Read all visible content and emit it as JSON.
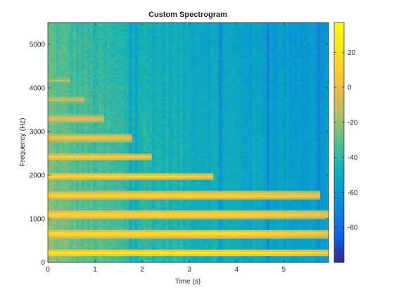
{
  "chart_data": {
    "type": "heatmap",
    "title": "Custom Spectrogram",
    "xlabel": "Time (s)",
    "ylabel": "Frequency (Hz)",
    "xlim": [
      0,
      5.95
    ],
    "ylim": [
      0,
      5500
    ],
    "x_ticks": [
      0,
      1,
      2,
      3,
      4,
      5
    ],
    "x_tick_labels": [
      "0",
      "1",
      "2",
      "3",
      "4",
      "5"
    ],
    "y_ticks": [
      0,
      1000,
      2000,
      3000,
      4000,
      5000
    ],
    "y_tick_labels": [
      "0",
      "1000",
      "2000",
      "3000",
      "4000",
      "5000"
    ],
    "colormap": "parula",
    "colorbar": {
      "range": [
        -100,
        37
      ],
      "ticks": [
        20,
        0,
        -20,
        -40,
        -60,
        -80
      ],
      "tick_labels": [
        "20",
        "0",
        "-20",
        "-40",
        "-60",
        "-80"
      ]
    },
    "harmonics": [
      {
        "freq": 220,
        "peak_db": 25,
        "end_time": 5.95
      },
      {
        "freq": 660,
        "peak_db": 22,
        "end_time": 5.95
      },
      {
        "freq": 1100,
        "peak_db": 20,
        "end_time": 5.95
      },
      {
        "freq": 1540,
        "peak_db": 18,
        "end_time": 5.8
      },
      {
        "freq": 1980,
        "peak_db": 16,
        "end_time": 3.5
      },
      {
        "freq": 2420,
        "peak_db": 12,
        "end_time": 2.2
      },
      {
        "freq": 2860,
        "peak_db": 8,
        "end_time": 1.8
      },
      {
        "freq": 3300,
        "peak_db": 4,
        "end_time": 1.2
      },
      {
        "freq": 3740,
        "peak_db": -5,
        "end_time": 0.8
      },
      {
        "freq": 4180,
        "peak_db": -12,
        "end_time": 0.5
      }
    ],
    "background_db": {
      "start": -30,
      "end": -62
    },
    "grid": false,
    "legend": "none"
  }
}
